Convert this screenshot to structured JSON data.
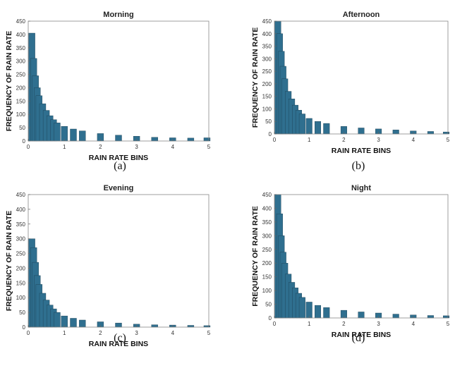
{
  "chart_data": [
    {
      "type": "bar",
      "title": "Morning",
      "xlabel": "RAIN RATE BINS",
      "ylabel": "FREQUENCY OF RAIN RATE",
      "caption": "(a)",
      "xlim": [
        0,
        5
      ],
      "ylim": [
        0,
        450
      ],
      "xticks": [
        "0",
        "1",
        "2",
        "3",
        "4",
        "5"
      ],
      "yticks": [
        "0",
        "50",
        "100",
        "150",
        "200",
        "250",
        "300",
        "350",
        "400",
        "450"
      ],
      "bar_color": "#2f6f8f",
      "x": [
        0.1,
        0.15,
        0.2,
        0.25,
        0.3,
        0.4,
        0.5,
        0.6,
        0.7,
        0.8,
        1.0,
        1.25,
        1.5,
        2.0,
        2.5,
        3.0,
        3.5,
        4.0,
        4.5,
        4.95
      ],
      "values": [
        405,
        310,
        245,
        200,
        170,
        140,
        115,
        95,
        80,
        68,
        55,
        45,
        38,
        28,
        22,
        18,
        14,
        12,
        11,
        12
      ]
    },
    {
      "type": "bar",
      "title": "Afternoon",
      "xlabel": "RAIN RATE BINS",
      "ylabel": "FREQUENCY OF RAIN RATE",
      "caption": "(b)",
      "xlim": [
        0,
        5
      ],
      "ylim": [
        0,
        450
      ],
      "xticks": [
        "0",
        "1",
        "2",
        "3",
        "4",
        "5"
      ],
      "yticks": [
        "0",
        "50",
        "100",
        "150",
        "200",
        "250",
        "300",
        "350",
        "400",
        "450"
      ],
      "bar_color": "#2f6f8f",
      "x": [
        0.1,
        0.15,
        0.2,
        0.25,
        0.3,
        0.4,
        0.5,
        0.6,
        0.7,
        0.8,
        1.0,
        1.25,
        1.5,
        2.0,
        2.5,
        3.0,
        3.5,
        4.0,
        4.5,
        4.95
      ],
      "values": [
        450,
        400,
        330,
        270,
        220,
        170,
        140,
        115,
        95,
        80,
        62,
        50,
        42,
        30,
        24,
        20,
        16,
        12,
        10,
        8
      ]
    },
    {
      "type": "bar",
      "title": "Evening",
      "xlabel": "RAIN RATE BINS",
      "ylabel": "FREQUENCY OF RAIN RATE",
      "caption": "(c)",
      "xlim": [
        0,
        5
      ],
      "ylim": [
        0,
        450
      ],
      "xticks": [
        "0",
        "1",
        "2",
        "3",
        "4",
        "5"
      ],
      "yticks": [
        "0",
        "50",
        "100",
        "150",
        "200",
        "250",
        "300",
        "350",
        "400",
        "450"
      ],
      "bar_color": "#2f6f8f",
      "x": [
        0.1,
        0.15,
        0.2,
        0.25,
        0.3,
        0.4,
        0.5,
        0.6,
        0.7,
        0.8,
        1.0,
        1.25,
        1.5,
        2.0,
        2.5,
        3.0,
        3.5,
        4.0,
        4.5,
        4.95
      ],
      "values": [
        300,
        270,
        220,
        175,
        145,
        115,
        92,
        75,
        62,
        50,
        38,
        30,
        24,
        18,
        14,
        10,
        8,
        7,
        6,
        5
      ]
    },
    {
      "type": "bar",
      "title": "Night",
      "xlabel": "RAIN RATE BINS",
      "ylabel": "FREQUENCY OF RAIN RATE",
      "caption": "(d)",
      "xlim": [
        0,
        5
      ],
      "ylim": [
        0,
        450
      ],
      "xticks": [
        "0",
        "1",
        "2",
        "3",
        "4",
        "5"
      ],
      "yticks": [
        "0",
        "50",
        "100",
        "150",
        "200",
        "250",
        "300",
        "350",
        "400",
        "450"
      ],
      "bar_color": "#2f6f8f",
      "x": [
        0.1,
        0.15,
        0.2,
        0.25,
        0.3,
        0.4,
        0.5,
        0.6,
        0.7,
        0.8,
        1.0,
        1.25,
        1.5,
        2.0,
        2.5,
        3.0,
        3.5,
        4.0,
        4.5,
        4.95
      ],
      "values": [
        450,
        380,
        300,
        240,
        200,
        160,
        130,
        110,
        90,
        75,
        58,
        46,
        38,
        28,
        22,
        18,
        14,
        11,
        9,
        8
      ]
    }
  ]
}
